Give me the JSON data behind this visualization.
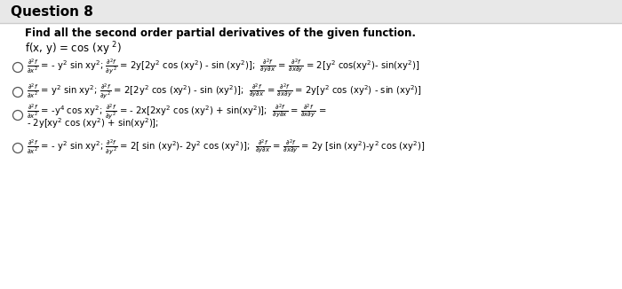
{
  "bg_color": "#ffffff",
  "title_bg": "#f0f0f0",
  "title": "Question 8",
  "instruction": "Find all the second order partial derivatives of the given function.",
  "func_def": "f(x, y) = cos (xy $^2$)",
  "opt1": "$\\frac{\\partial^2 f}{\\partial x^2}$ = - y$^2$ sin xy$^2$; $\\frac{\\partial^2 f}{\\partial y^2}$ = 2y[2y$^2$ cos (xy$^2$) - sin (xy$^2$)];  $\\frac{\\partial^2 f}{\\partial y\\partial x}$ = $\\frac{\\partial^2 f}{\\partial x\\partial y}$ = 2[y$^2$ cos(xy$^2$)- sin(xy$^2$)]",
  "opt2": "$\\frac{\\partial^2 f}{\\partial x^2}$ = y$^2$ sin xy$^2$; $\\frac{\\partial^2 f}{\\partial y^2}$ = 2[2y$^2$ cos (xy$^2$) - sin (xy$^2$)];  $\\frac{\\partial^2 f}{\\partial y\\partial x}$ = $\\frac{\\partial^2 f}{\\partial x\\partial y}$ = 2y[y$^2$ cos (xy$^2$) - sin (xy$^2$)]",
  "opt3a": "$\\frac{\\partial^2 f}{\\partial x^2}$ = -y$^4$ cos xy$^2$; $\\frac{\\partial^2 f}{\\partial y^2}$ = - 2x[2xy$^2$ cos (xy$^2$) + sin(xy$^2$)];  $\\frac{\\partial^2 f}{\\partial y\\partial x}$ = $\\frac{\\partial^2 f}{\\partial x\\partial y}$ =",
  "opt3b": "- 2y[xy$^2$ cos (xy$^2$) + sin(xy$^2$)];",
  "opt4": "$\\frac{\\partial^2 f}{\\partial x^2}$ = - y$^2$ sin xy$^2$; $\\frac{\\partial^2 f}{\\partial y^2}$ = 2[ sin (xy$^2$)- 2y$^2$ cos (xy$^2$)];  $\\frac{\\partial^2 f}{\\partial y\\partial x}$ = $\\frac{\\partial^2 f}{\\partial x\\partial y}$ = 2y [sin (xy$^2$)-y$^2$ cos (xy$^2$)]"
}
